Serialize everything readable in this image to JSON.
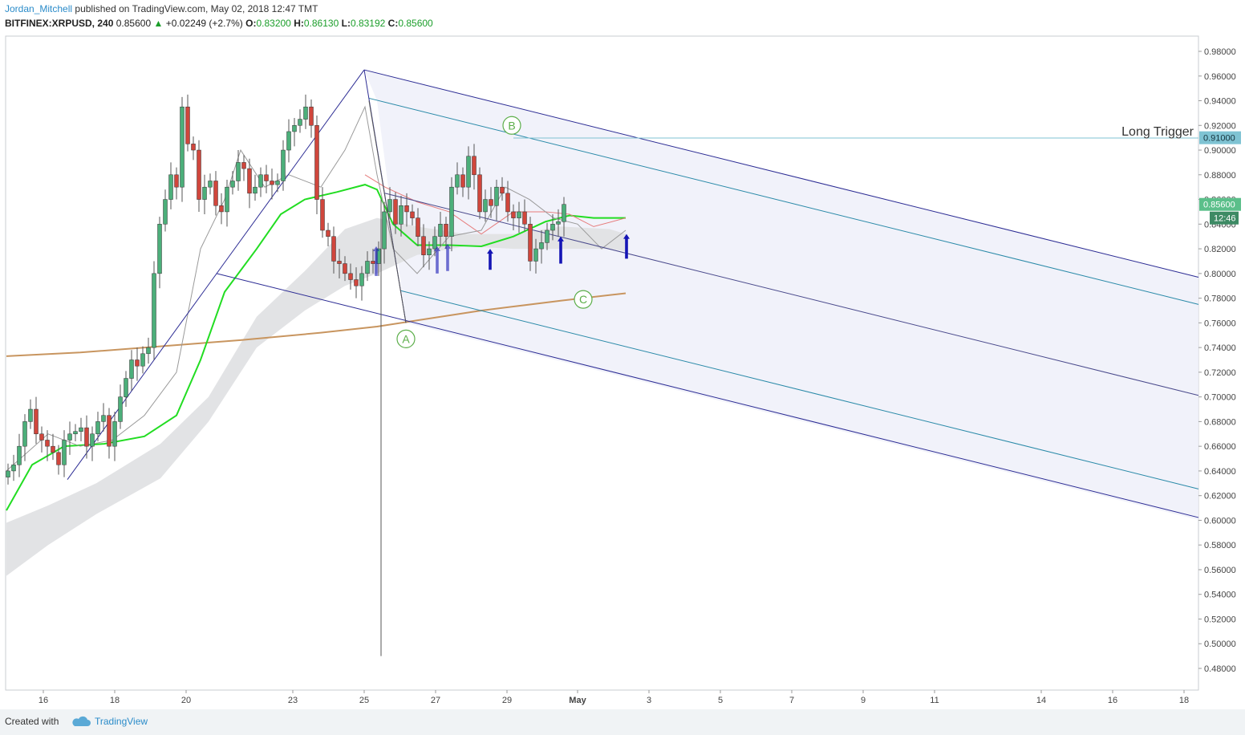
{
  "header": {
    "author": "Jordan_Mitchell",
    "published": "published on TradingView.com, May 02, 2018 12:47 TMT",
    "symbol": "BITFINEX:XRPUSD,",
    "interval": "240",
    "last": "0.85600",
    "change": "+0.02249 (+2.7%)",
    "o_label": "O:",
    "o": "0.83200",
    "h_label": "H:",
    "h": "0.86130",
    "l_label": "L:",
    "l": "0.83192",
    "c_label": "C:",
    "c": "0.85600"
  },
  "footer": {
    "created_with": "Created with",
    "brand": "TradingView"
  },
  "price_tags": {
    "trigger": "0.91000",
    "last": "0.85600",
    "countdown": "12:46"
  },
  "labels": {
    "long_trigger": "Long Trigger",
    "wave_a": "A",
    "wave_b": "B",
    "wave_c": "C"
  },
  "colors": {
    "up": "#4caf7a",
    "down": "#d0463c",
    "ema_green": "#22dd22",
    "sma_200": "#c8955f",
    "fork": "#2c2c94",
    "fork_inner": "#2a8aa8",
    "arrow": "#1515b5",
    "wave_label": "#5cae4a"
  },
  "chart_data": {
    "type": "candlestick",
    "symbol": "BITFINEX:XRPUSD",
    "interval": "240",
    "y_axis": {
      "range": [
        0.465,
        0.99
      ],
      "ticks": [
        "0.98000",
        "0.96000",
        "0.94000",
        "0.92000",
        "0.90000",
        "0.88000",
        "0.86000",
        "0.84000",
        "0.82000",
        "0.80000",
        "0.78000",
        "0.76000",
        "0.74000",
        "0.72000",
        "0.70000",
        "0.68000",
        "0.66000",
        "0.64000",
        "0.62000",
        "0.60000",
        "0.58000",
        "0.56000",
        "0.54000",
        "0.52000",
        "0.50000",
        "0.48000"
      ]
    },
    "x_axis": {
      "ticks": [
        "16",
        "18",
        "20",
        "23",
        "25",
        "27",
        "29",
        "May",
        "3",
        "5",
        "7",
        "9",
        "11",
        "14",
        "16",
        "18"
      ]
    },
    "horizontal_line": {
      "label": "Long Trigger",
      "price": 0.91
    },
    "pitchfork": {
      "A": 0.76,
      "B": 0.965,
      "C": 0.8,
      "label_B": 0.92,
      "label_A": 0.747,
      "label_C": 0.779
    },
    "wave_labels": [
      "A",
      "B",
      "C"
    ],
    "long_trigger_price": 0.91,
    "last_price": 0.856
  }
}
